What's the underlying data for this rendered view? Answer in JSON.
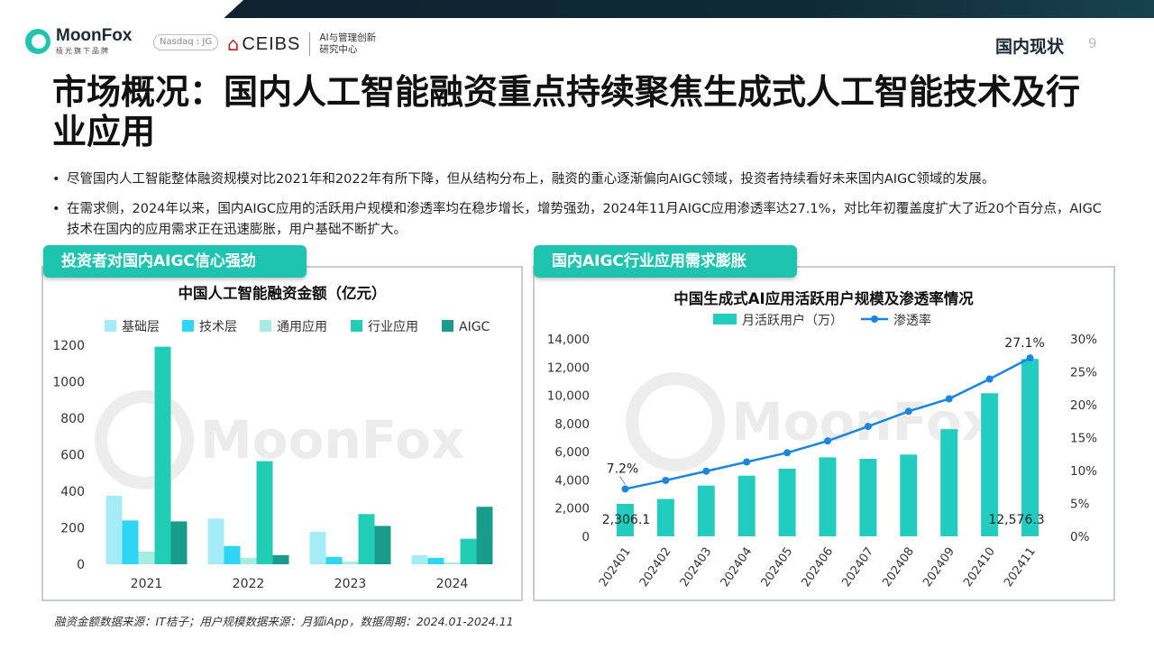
{
  "header": {
    "logo_name": "MoonFox",
    "logo_sub": "极光旗下品牌",
    "nasdaq": "Nasdaq : JG",
    "ceibs_icon": "⌂",
    "ceibs_name": "CEIBS",
    "ceibs_center_line1": "AI与管理创新",
    "ceibs_center_line2": "研究中心",
    "section_tag": "国内现状",
    "page_number": "9"
  },
  "title": "市场概况：国内人工智能融资重点持续聚焦生成式人工智能技术及行业应用",
  "bullets": [
    "尽管国内人工智能整体融资规模对比2021年和2022年有所下降，但从结构分布上，融资的重心逐渐偏向AIGC领域，投资者持续看好未来国内AIGC领域的发展。",
    "在需求侧，2024年以来，国内AIGC应用的活跃用户规模和渗透率均在稳步增长，增势强劲，2024年11月AIGC应用渗透率达27.1%，对比年初覆盖度扩大了近20个百分点，AIGC技术在国内的应用需求正在迅速膨胀，用户基础不断扩大。"
  ],
  "panels": {
    "left_tag": "投资者对国内AIGC信心强劲",
    "right_tag": "国内AIGC行业应用需求膨胀"
  },
  "watermark": "MoonFox",
  "source": "融资金额数据来源：IT桔子；用户规模数据来源：月狐iApp，数据周期：2024.01-2024.11",
  "chart_data": [
    {
      "type": "bar",
      "title": "中国人工智能融资金额（亿元）",
      "categories": [
        "2021",
        "2022",
        "2023",
        "2024"
      ],
      "series": [
        {
          "name": "基础层",
          "color": "#a4ecf8",
          "values": [
            375,
            250,
            178,
            50
          ]
        },
        {
          "name": "技术层",
          "color": "#2fd5f4",
          "values": [
            240,
            100,
            40,
            35
          ]
        },
        {
          "name": "通用应用",
          "color": "#a6ece0",
          "values": [
            70,
            35,
            15,
            10
          ]
        },
        {
          "name": "行业应用",
          "color": "#22cdb6",
          "values": [
            1192,
            565,
            275,
            140
          ]
        },
        {
          "name": "AIGC",
          "color": "#1a9c8c",
          "values": [
            235,
            50,
            210,
            315
          ]
        }
      ],
      "ylim": [
        0,
        1200
      ],
      "yticks": [
        "0",
        "200",
        "400",
        "600",
        "800",
        "1000",
        "1200"
      ],
      "legend": "top",
      "grid": false
    },
    {
      "type": "bar+line",
      "title": "中国生成式AI应用活跃用户规模及渗透率情况",
      "categories": [
        "202401",
        "202402",
        "202403",
        "202404",
        "202405",
        "202406",
        "202407",
        "202408",
        "202409",
        "202410",
        "202411"
      ],
      "series": [
        {
          "name": "月活跃用户（万）",
          "type": "bar",
          "axis": "left",
          "color": "#22cdc0",
          "values": [
            2306.1,
            2650,
            3600,
            4300,
            4800,
            5600,
            5500,
            5800,
            7600,
            10150,
            12576.3
          ]
        },
        {
          "name": "渗透率",
          "type": "line",
          "axis": "right",
          "color": "#1a86e0",
          "values": [
            7.2,
            8.5,
            9.9,
            11.3,
            12.7,
            14.5,
            16.7,
            19.0,
            20.9,
            23.9,
            27.1
          ]
        }
      ],
      "y_left": {
        "lim": [
          0,
          14000
        ],
        "ticks": [
          "0",
          "2,000",
          "4,000",
          "6,000",
          "8,000",
          "10,000",
          "12,000",
          "14,000"
        ]
      },
      "y_right": {
        "lim": [
          0,
          30
        ],
        "ticks": [
          "0%",
          "5%",
          "10%",
          "15%",
          "20%",
          "25%",
          "30%"
        ]
      },
      "annotations": {
        "first_bar": "2,306.1",
        "last_bar": "12,576.3",
        "first_rate": "7.2%",
        "last_rate": "27.1%"
      },
      "legend": "top",
      "grid": false
    }
  ]
}
